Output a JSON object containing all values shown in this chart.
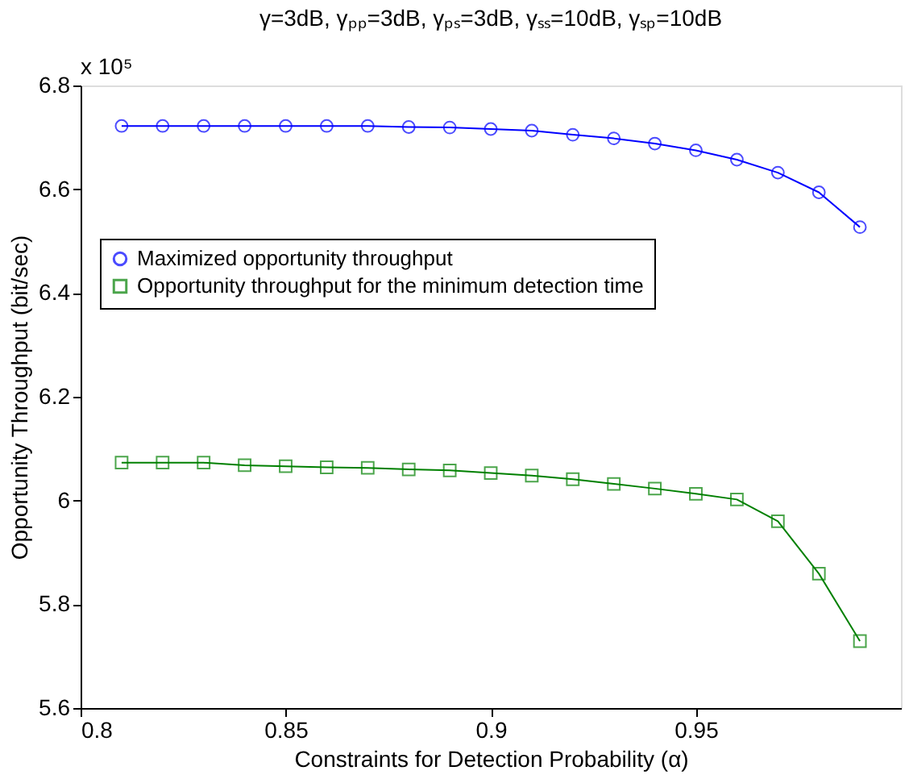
{
  "chart_data": {
    "type": "line",
    "title": "γ=3dB, γₚₚ=3dB, γₚₛ=3dB, γₛₛ=10dB, γₛₚ=10dB",
    "xlabel": "Constraints for Detection Probability (α)",
    "ylabel": "Opportunity Throughput (bit/sec)",
    "annotations": [
      "x 10⁵"
    ],
    "x": [
      0.81,
      0.82,
      0.83,
      0.84,
      0.85,
      0.86,
      0.87,
      0.88,
      0.89,
      0.9,
      0.91,
      0.92,
      0.93,
      0.94,
      0.95,
      0.96,
      0.97,
      0.98,
      0.99
    ],
    "series": [
      {
        "name": "Maximized opportunity throughput",
        "color": "#0000ff",
        "marker": "circle",
        "values": [
          6.722,
          6.722,
          6.722,
          6.722,
          6.722,
          6.722,
          6.722,
          6.72,
          6.719,
          6.716,
          6.713,
          6.705,
          6.698,
          6.688,
          6.675,
          6.657,
          6.632,
          6.594,
          6.527
        ]
      },
      {
        "name": "Opportunity throughput for the minimum detection time",
        "color": "#008000",
        "marker": "square",
        "values": [
          6.073,
          6.073,
          6.073,
          6.068,
          6.066,
          6.064,
          6.063,
          6.06,
          6.058,
          6.053,
          6.048,
          6.041,
          6.032,
          6.023,
          6.013,
          6.002,
          5.96,
          5.859,
          5.729
        ]
      }
    ],
    "xlim": [
      0.8,
      1.0
    ],
    "xticks": [
      0.8,
      0.85,
      0.9,
      0.95
    ],
    "ylim": [
      5.6,
      6.8
    ],
    "yticks": [
      5.6,
      5.8,
      6.0,
      6.2,
      6.4,
      6.6,
      6.8
    ],
    "grid": false,
    "legend": "left",
    "line_style": "solid"
  }
}
